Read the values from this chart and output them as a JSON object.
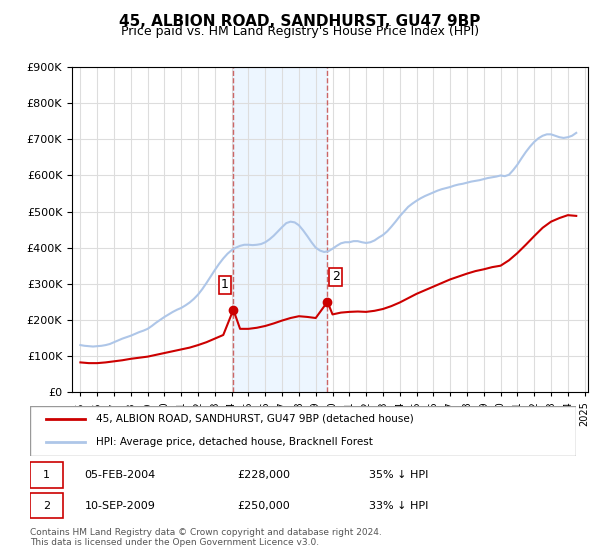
{
  "title": "45, ALBION ROAD, SANDHURST, GU47 9BP",
  "subtitle": "Price paid vs. HM Land Registry's House Price Index (HPI)",
  "hpi_label": "HPI: Average price, detached house, Bracknell Forest",
  "price_label": "45, ALBION ROAD, SANDHURST, GU47 9BP (detached house)",
  "hpi_color": "#aec6e8",
  "price_color": "#cc0000",
  "marker_color": "#cc0000",
  "purchase1": {
    "date": "05-FEB-2004",
    "price": 228000,
    "label": "1",
    "year": 2004.1
  },
  "purchase2": {
    "date": "10-SEP-2009",
    "price": 250000,
    "label": "2",
    "year": 2009.7
  },
  "footnote1": "Contains HM Land Registry data © Crown copyright and database right 2024.",
  "footnote2": "This data is licensed under the Open Government Licence v3.0.",
  "ylim": [
    0,
    900000
  ],
  "yticks": [
    0,
    100000,
    200000,
    300000,
    400000,
    500000,
    600000,
    700000,
    800000,
    900000
  ],
  "bg_color": "#ffffff",
  "plot_bg_color": "#ffffff",
  "grid_color": "#dddddd",
  "shade_color": "#ddeeff",
  "vline_color": "#cc6666",
  "hpi_data": {
    "years": [
      1995.0,
      1995.25,
      1995.5,
      1995.75,
      1996.0,
      1996.25,
      1996.5,
      1996.75,
      1997.0,
      1997.25,
      1997.5,
      1997.75,
      1998.0,
      1998.25,
      1998.5,
      1998.75,
      1999.0,
      1999.25,
      1999.5,
      1999.75,
      2000.0,
      2000.25,
      2000.5,
      2000.75,
      2001.0,
      2001.25,
      2001.5,
      2001.75,
      2002.0,
      2002.25,
      2002.5,
      2002.75,
      2003.0,
      2003.25,
      2003.5,
      2003.75,
      2004.0,
      2004.25,
      2004.5,
      2004.75,
      2005.0,
      2005.25,
      2005.5,
      2005.75,
      2006.0,
      2006.25,
      2006.5,
      2006.75,
      2007.0,
      2007.25,
      2007.5,
      2007.75,
      2008.0,
      2008.25,
      2008.5,
      2008.75,
      2009.0,
      2009.25,
      2009.5,
      2009.75,
      2010.0,
      2010.25,
      2010.5,
      2010.75,
      2011.0,
      2011.25,
      2011.5,
      2011.75,
      2012.0,
      2012.25,
      2012.5,
      2012.75,
      2013.0,
      2013.25,
      2013.5,
      2013.75,
      2014.0,
      2014.25,
      2014.5,
      2014.75,
      2015.0,
      2015.25,
      2015.5,
      2015.75,
      2016.0,
      2016.25,
      2016.5,
      2016.75,
      2017.0,
      2017.25,
      2017.5,
      2017.75,
      2018.0,
      2018.25,
      2018.5,
      2018.75,
      2019.0,
      2019.25,
      2019.5,
      2019.75,
      2020.0,
      2020.25,
      2020.5,
      2020.75,
      2021.0,
      2021.25,
      2021.5,
      2021.75,
      2022.0,
      2022.25,
      2022.5,
      2022.75,
      2023.0,
      2023.25,
      2023.5,
      2023.75,
      2024.0,
      2024.25,
      2024.5
    ],
    "values": [
      130000,
      128000,
      127000,
      126000,
      127000,
      128000,
      130000,
      133000,
      138000,
      143000,
      148000,
      152000,
      156000,
      161000,
      166000,
      170000,
      175000,
      183000,
      192000,
      200000,
      208000,
      215000,
      222000,
      228000,
      233000,
      240000,
      248000,
      258000,
      270000,
      285000,
      302000,
      320000,
      338000,
      355000,
      370000,
      383000,
      393000,
      400000,
      405000,
      408000,
      408000,
      407000,
      408000,
      410000,
      415000,
      423000,
      433000,
      445000,
      457000,
      468000,
      472000,
      470000,
      462000,
      448000,
      432000,
      415000,
      400000,
      392000,
      388000,
      390000,
      397000,
      405000,
      412000,
      415000,
      415000,
      418000,
      418000,
      415000,
      413000,
      415000,
      420000,
      428000,
      435000,
      445000,
      458000,
      472000,
      487000,
      500000,
      513000,
      522000,
      530000,
      537000,
      543000,
      548000,
      553000,
      558000,
      562000,
      565000,
      568000,
      572000,
      575000,
      577000,
      580000,
      583000,
      585000,
      587000,
      590000,
      593000,
      595000,
      597000,
      600000,
      598000,
      602000,
      615000,
      630000,
      648000,
      665000,
      680000,
      693000,
      703000,
      710000,
      714000,
      714000,
      710000,
      706000,
      704000,
      706000,
      710000,
      718000
    ]
  },
  "price_data": {
    "years": [
      1995.0,
      1995.5,
      1996.0,
      1996.5,
      1997.0,
      1997.5,
      1998.0,
      1998.5,
      1999.0,
      1999.5,
      2000.0,
      2000.5,
      2001.0,
      2001.5,
      2002.0,
      2002.5,
      2003.0,
      2003.5,
      2004.1,
      2004.5,
      2005.0,
      2005.5,
      2006.0,
      2006.5,
      2007.0,
      2007.5,
      2008.0,
      2008.5,
      2009.0,
      2009.7,
      2010.0,
      2010.5,
      2011.0,
      2011.5,
      2012.0,
      2012.5,
      2013.0,
      2013.5,
      2014.0,
      2014.5,
      2015.0,
      2015.5,
      2016.0,
      2016.5,
      2017.0,
      2017.5,
      2018.0,
      2018.5,
      2019.0,
      2019.5,
      2020.0,
      2020.5,
      2021.0,
      2021.5,
      2022.0,
      2022.5,
      2023.0,
      2023.5,
      2024.0,
      2024.5
    ],
    "values": [
      82000,
      80000,
      80000,
      82000,
      85000,
      88000,
      92000,
      95000,
      98000,
      103000,
      108000,
      113000,
      118000,
      123000,
      130000,
      138000,
      148000,
      158000,
      228000,
      175000,
      175000,
      178000,
      183000,
      190000,
      198000,
      205000,
      210000,
      208000,
      205000,
      250000,
      215000,
      220000,
      222000,
      223000,
      222000,
      225000,
      230000,
      238000,
      248000,
      260000,
      272000,
      282000,
      292000,
      302000,
      312000,
      320000,
      328000,
      335000,
      340000,
      346000,
      350000,
      365000,
      385000,
      408000,
      432000,
      455000,
      472000,
      482000,
      490000,
      488000
    ]
  }
}
